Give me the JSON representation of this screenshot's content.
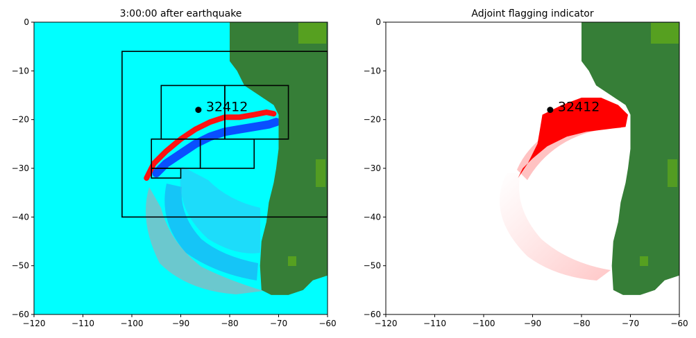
{
  "chart_data": [
    {
      "type": "heatmap",
      "title": "3:00:00 after earthquake",
      "xlabel": "",
      "ylabel": "",
      "xlim": [
        -120,
        -60
      ],
      "ylim": [
        -60,
        0
      ],
      "xticks": [
        -120,
        -110,
        -100,
        -90,
        -80,
        -70,
        -60
      ],
      "yticks": [
        0,
        -10,
        -20,
        -30,
        -40,
        -50,
        -60
      ],
      "colors": {
        "ocean": "#00ffff",
        "land": "#367e37",
        "land_light": "#5fa91a",
        "wave_pos": "#ff0000",
        "wave_neg": "#0066ff",
        "station": "#000000"
      },
      "station": {
        "label": "32412",
        "x": -86.4,
        "y": -18.0
      },
      "refinement_patches": [
        {
          "x0": -102,
          "x1": -60,
          "y0": -40,
          "y1": -6
        },
        {
          "x0": -94,
          "x1": -81,
          "y0": -24,
          "y1": -13
        },
        {
          "x0": -81,
          "x1": -68,
          "y0": -24,
          "y1": -13
        },
        {
          "x0": -96,
          "x1": -86,
          "y0": -30,
          "y1": -24
        },
        {
          "x0": -86,
          "x1": -75,
          "y0": -30,
          "y1": -24
        },
        {
          "x0": -96,
          "x1": -90,
          "y0": -32,
          "y1": -30
        }
      ],
      "coastline": [
        [
          -80,
          0
        ],
        [
          -80,
          -8
        ],
        [
          -78.5,
          -10
        ],
        [
          -77,
          -13
        ],
        [
          -74,
          -15
        ],
        [
          -71,
          -17
        ],
        [
          -70,
          -19
        ],
        [
          -70,
          -26
        ],
        [
          -70.5,
          -30
        ],
        [
          -71,
          -33
        ],
        [
          -72,
          -37
        ],
        [
          -72.5,
          -41
        ],
        [
          -73.5,
          -45
        ],
        [
          -73.8,
          -50
        ],
        [
          -73.5,
          -55
        ],
        [
          -71.5,
          -56
        ],
        [
          -68,
          -56
        ],
        [
          -65,
          -55
        ],
        [
          -63,
          -53
        ],
        [
          -60,
          -52
        ]
      ],
      "wavefront": [
        [
          -97,
          -32
        ],
        [
          -95.5,
          -29
        ],
        [
          -93,
          -26.5
        ],
        [
          -90,
          -24
        ],
        [
          -87,
          -22
        ],
        [
          -84,
          -20.5
        ],
        [
          -81,
          -19.5
        ],
        [
          -78,
          -19.5
        ],
        [
          -75,
          -19
        ],
        [
          -72.5,
          -18.5
        ],
        [
          -71,
          -18.8
        ]
      ],
      "trough": [
        [
          -95,
          -31
        ],
        [
          -93,
          -29
        ],
        [
          -90,
          -27
        ],
        [
          -87,
          -25
        ],
        [
          -84,
          -23.5
        ],
        [
          -81,
          -22.5
        ],
        [
          -78,
          -22
        ],
        [
          -75,
          -21.5
        ],
        [
          -72,
          -21
        ],
        [
          -70.5,
          -20.5
        ]
      ]
    },
    {
      "type": "heatmap",
      "title": "Adjoint flagging indicator",
      "xlabel": "",
      "ylabel": "",
      "xlim": [
        -120,
        -60
      ],
      "ylim": [
        -60,
        0
      ],
      "xticks": [
        -120,
        -110,
        -100,
        -90,
        -80,
        -70,
        -60
      ],
      "yticks": [
        0,
        -10,
        -20,
        -30,
        -40,
        -50,
        -60
      ],
      "colors": {
        "background": "#ffffff",
        "land": "#367e37",
        "land_light": "#5fa91a",
        "flag_high": "#ff0000",
        "station": "#000000"
      },
      "station": {
        "label": "32412",
        "x": -86.4,
        "y": -18.0
      },
      "coastline": [
        [
          -80,
          0
        ],
        [
          -80,
          -8
        ],
        [
          -78.5,
          -10
        ],
        [
          -77,
          -13
        ],
        [
          -74,
          -15
        ],
        [
          -71,
          -17
        ],
        [
          -70,
          -19
        ],
        [
          -70,
          -26
        ],
        [
          -70.5,
          -30
        ],
        [
          -71,
          -33
        ],
        [
          -72,
          -37
        ],
        [
          -72.5,
          -41
        ],
        [
          -73.5,
          -45
        ],
        [
          -73.8,
          -50
        ],
        [
          -73.5,
          -55
        ],
        [
          -71.5,
          -56
        ],
        [
          -68,
          -56
        ],
        [
          -65,
          -55
        ],
        [
          -63,
          -53
        ],
        [
          -60,
          -52
        ]
      ],
      "flag_region": [
        [
          -88,
          -19
        ],
        [
          -84,
          -17
        ],
        [
          -80,
          -15.5
        ],
        [
          -76,
          -15.5
        ],
        [
          -72.5,
          -17
        ],
        [
          -70.5,
          -19
        ],
        [
          -71,
          -21.5
        ],
        [
          -75,
          -22
        ],
        [
          -79,
          -22.5
        ],
        [
          -83,
          -23.5
        ],
        [
          -87,
          -25.5
        ],
        [
          -90,
          -28
        ],
        [
          -92,
          -30
        ],
        [
          -93,
          -32
        ],
        [
          -91,
          -29
        ],
        [
          -89,
          -25
        ],
        [
          -88.5,
          -22
        ]
      ]
    }
  ]
}
